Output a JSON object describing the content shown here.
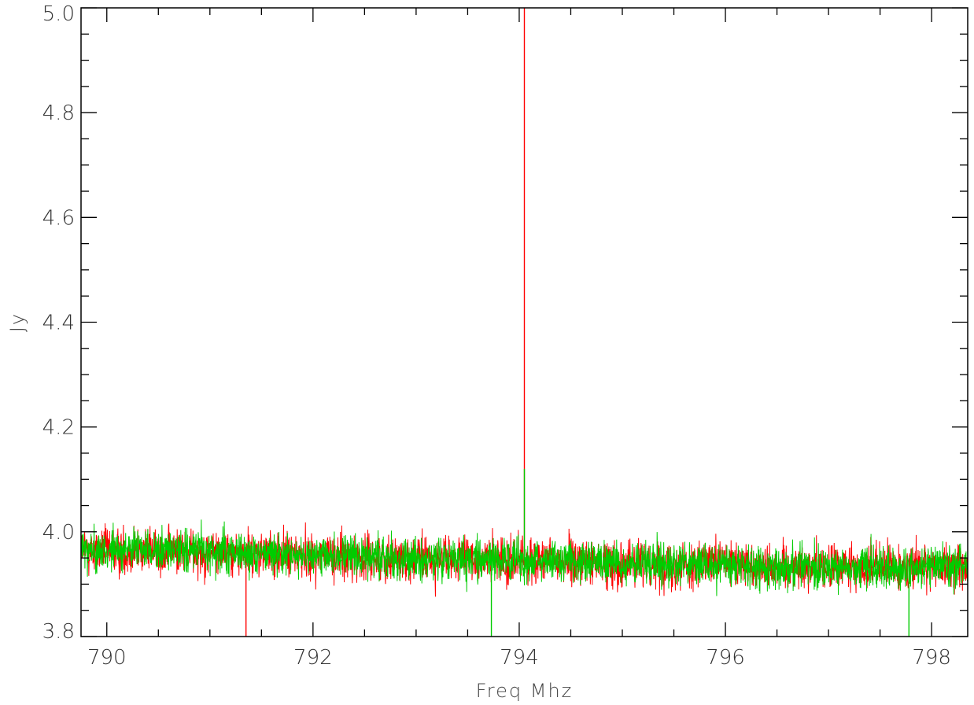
{
  "chart_data": {
    "type": "line",
    "xlabel": "Freq Mhz",
    "ylabel": "Jy",
    "xlim": [
      789.75,
      798.35
    ],
    "ylim": [
      3.8,
      5.0
    ],
    "x_ticks": [
      790,
      792,
      794,
      796,
      798
    ],
    "x_tick_labels": [
      "790",
      "792",
      "794",
      "796",
      "798"
    ],
    "y_ticks": [
      3.8,
      4.0,
      4.2,
      4.4,
      4.6,
      4.8,
      5.0
    ],
    "y_tick_labels": [
      "3.8",
      "4.0",
      "4.2",
      "4.4",
      "4.6",
      "4.8",
      "5.0"
    ],
    "grid": false,
    "series": [
      {
        "color": "#ff0000",
        "baseline": [
          [
            789.75,
            3.965
          ],
          [
            791.0,
            3.962
          ],
          [
            792.0,
            3.955
          ],
          [
            793.0,
            3.948
          ],
          [
            794.0,
            3.945
          ],
          [
            795.0,
            3.94
          ],
          [
            796.0,
            3.938
          ],
          [
            797.0,
            3.932
          ],
          [
            798.35,
            3.935
          ]
        ],
        "noise_amplitude": 0.03,
        "features": [
          {
            "x": 794.05,
            "y": 5.0,
            "type": "spike"
          },
          {
            "x": 791.35,
            "y": 3.8,
            "type": "dip"
          }
        ]
      },
      {
        "color": "#00cc00",
        "baseline": [
          [
            789.75,
            3.965
          ],
          [
            791.0,
            3.962
          ],
          [
            792.0,
            3.955
          ],
          [
            793.0,
            3.948
          ],
          [
            794.0,
            3.945
          ],
          [
            795.0,
            3.94
          ],
          [
            796.0,
            3.935
          ],
          [
            797.0,
            3.93
          ],
          [
            798.35,
            3.935
          ]
        ],
        "noise_amplitude": 0.027,
        "features": [
          {
            "x": 794.05,
            "y": 4.12,
            "type": "spike"
          },
          {
            "x": 793.73,
            "y": 3.8,
            "type": "dip"
          },
          {
            "x": 797.78,
            "y": 3.8,
            "type": "dip"
          }
        ]
      }
    ]
  }
}
